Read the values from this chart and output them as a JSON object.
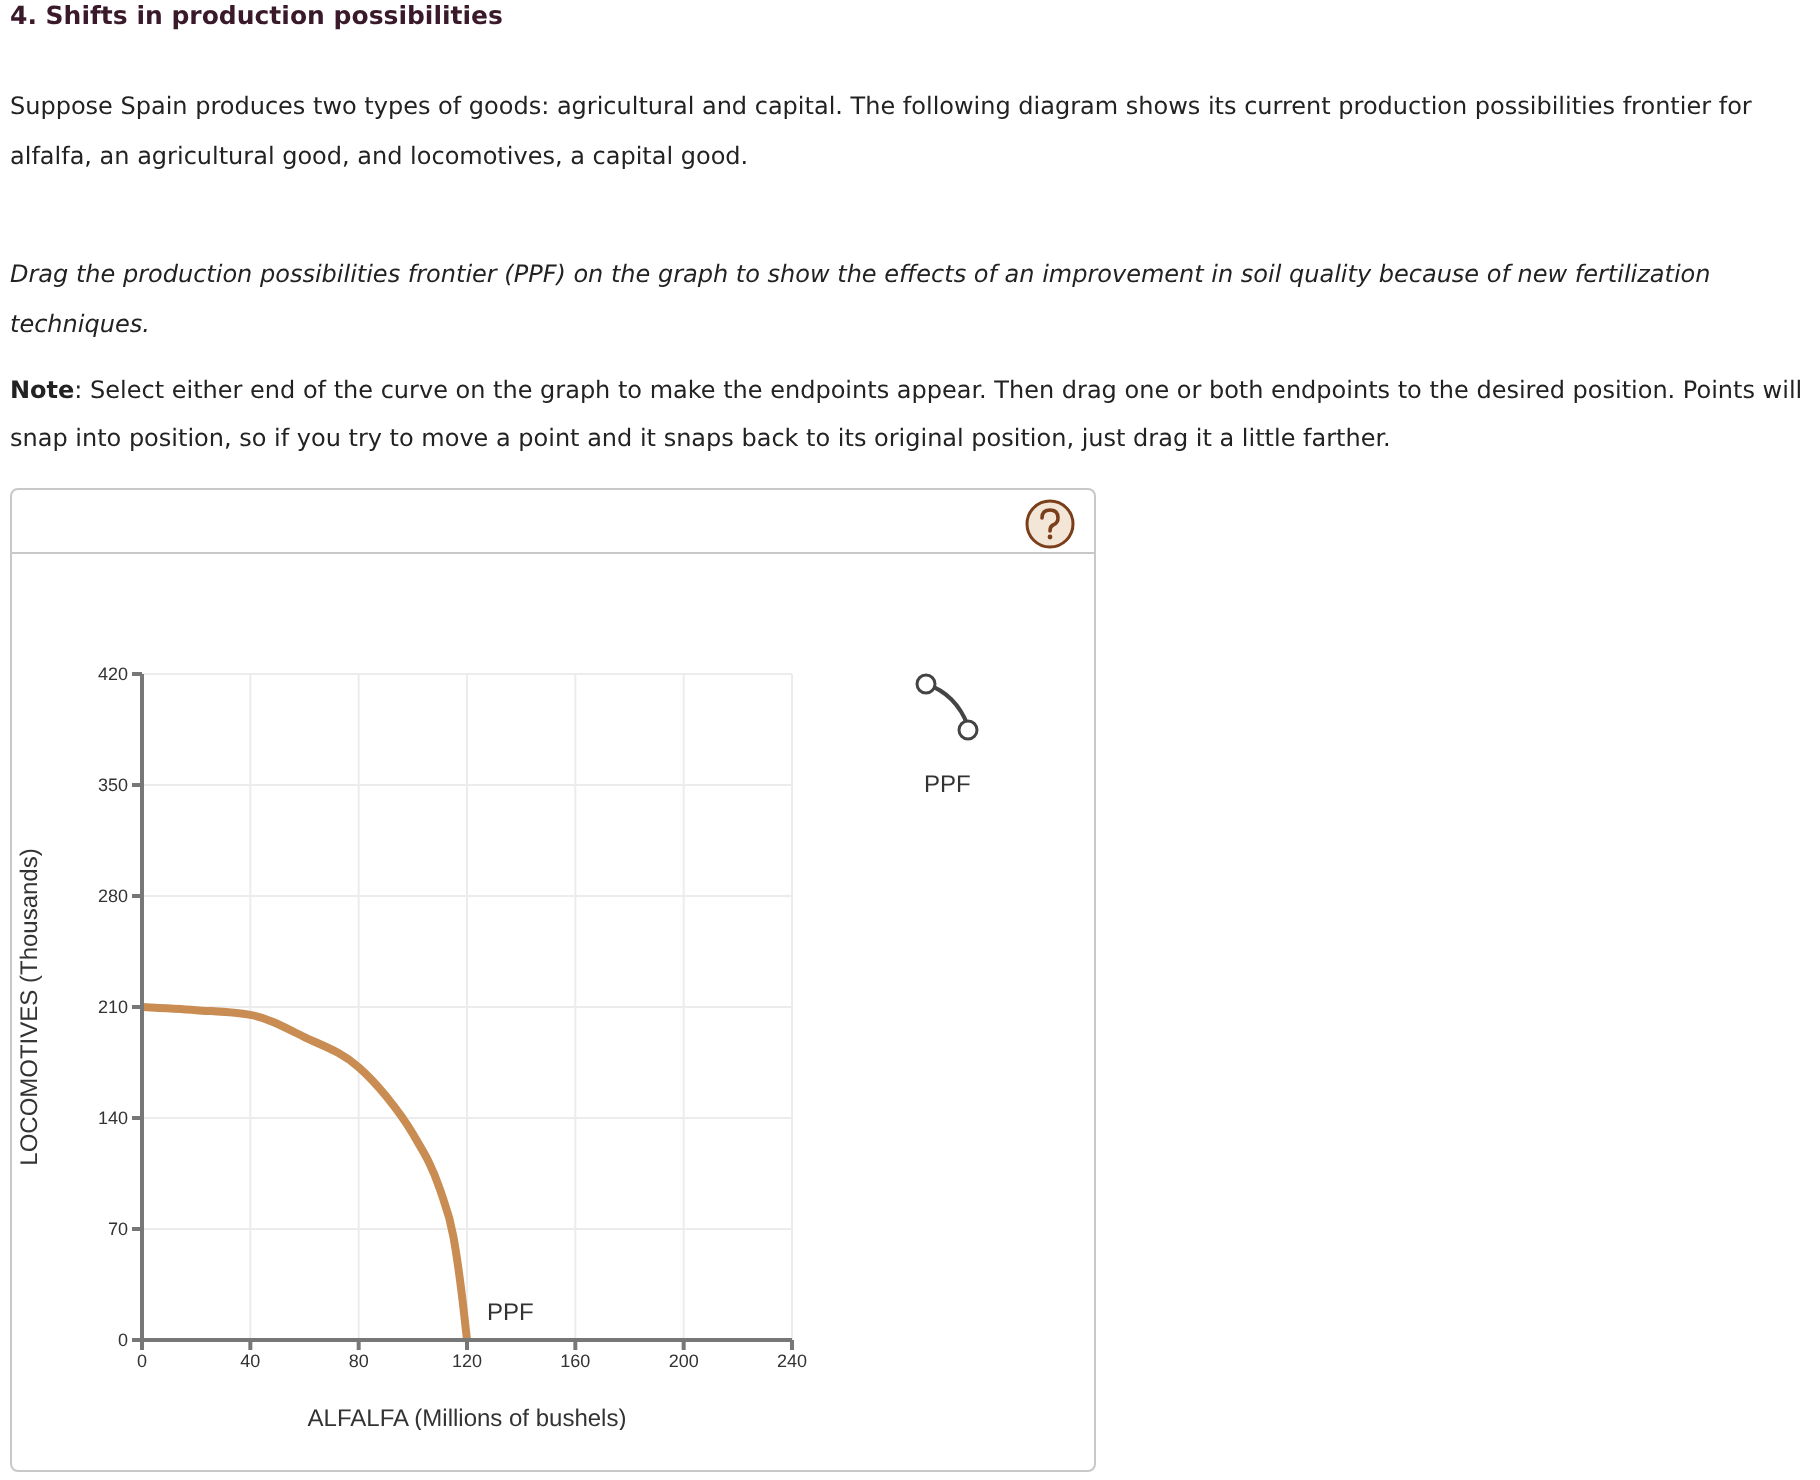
{
  "chart_data": {
    "type": "line",
    "title": "4. Shifts in production possibilities",
    "subtitle": "Suppose Spain produces two types of goods: agricultural and capital. The following diagram shows its current production possibilities frontier for alfalfa, an agricultural good, and locomotives, a capital good.",
    "annotations": [
      "Drag the production possibilities frontier (PPF) on the graph to show the effects of an improvement in soil quality because of new fertilization techniques.",
      "Note: Select either end of the curve on the graph to make the endpoints appear. Then drag one or both endpoints to the desired position. Points will snap into position, so if you try to move a point and it snaps back to its original position, just drag it a little farther.",
      "PPF"
    ],
    "xlabel": "ALFALFA (Millions of bushels)",
    "ylabel": "LOCOMOTIVES (Thousands)",
    "series": [
      {
        "name": "PPF",
        "color": "#c98c52",
        "x": [
          0,
          20,
          40,
          60,
          80,
          90,
          100,
          110,
          115,
          118,
          120
        ],
        "values": [
          210,
          208,
          205,
          191,
          172,
          154,
          130,
          95,
          65,
          30,
          0
        ]
      }
    ],
    "xlim": [
      0,
      240
    ],
    "xticks": [
      0,
      40,
      80,
      120,
      160,
      200,
      240
    ],
    "ylim": [
      0,
      420
    ],
    "yticks": [
      0,
      70,
      140,
      210,
      280,
      350,
      420
    ],
    "grid": true,
    "legend": false,
    "marker": "none",
    "line_style": "solid"
  }
}
